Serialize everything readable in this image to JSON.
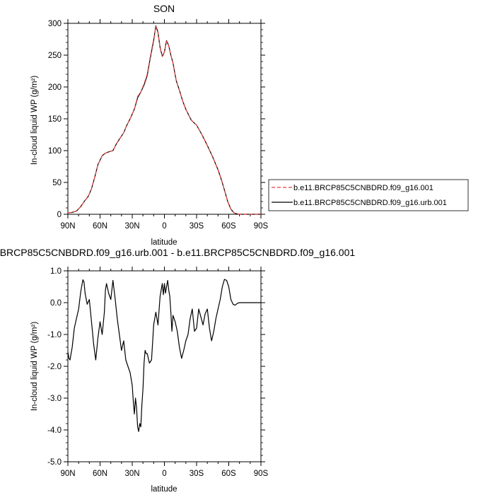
{
  "chart_data": [
    {
      "type": "line",
      "title": "SON",
      "xlabel": "latitude",
      "ylabel": "In-cloud liquid WP (g/m²)",
      "xlim": [
        90,
        -90
      ],
      "ylim": [
        0,
        300
      ],
      "x_ticks": [
        90,
        60,
        30,
        0,
        -30,
        -60,
        -90
      ],
      "x_tick_labels": [
        "90N",
        "60N",
        "30N",
        "0",
        "30S",
        "60S",
        "90S"
      ],
      "y_ticks": [
        0,
        50,
        100,
        150,
        200,
        250,
        300
      ],
      "y_tick_labels": [
        "0",
        "50",
        "100",
        "150",
        "200",
        "250",
        "300"
      ],
      "legend": "right",
      "series": [
        {
          "name": "b.e11.BRCP85C5CNBDRD.f09_g16.001",
          "color": "#e8413c",
          "dash": "dashed",
          "x": [
            90,
            86,
            82,
            78,
            74,
            71,
            68,
            65,
            62,
            60,
            58,
            55,
            52,
            48,
            45,
            42,
            38,
            35,
            32,
            28,
            25,
            22,
            19,
            16,
            14,
            12,
            10,
            8,
            6,
            4,
            2,
            0,
            -2,
            -4,
            -6,
            -8,
            -11,
            -14,
            -17,
            -20,
            -25,
            -30,
            -35,
            -40,
            -45,
            -50,
            -53,
            -56,
            -59,
            -62,
            -65,
            -68,
            -72,
            -80,
            -90
          ],
          "values": [
            2,
            3,
            5,
            12,
            22,
            28,
            40,
            58,
            78,
            85,
            92,
            96,
            98,
            100,
            110,
            118,
            128,
            140,
            150,
            165,
            185,
            192,
            205,
            220,
            240,
            258,
            275,
            295,
            285,
            262,
            248,
            255,
            272,
            265,
            250,
            238,
            210,
            195,
            178,
            165,
            148,
            140,
            125,
            108,
            90,
            70,
            55,
            38,
            20,
            8,
            2,
            0.5,
            0,
            0,
            0
          ]
        },
        {
          "name": "b.e11.BRCP85C5CNBDRD.f09_g16.urb.001",
          "color": "#000000",
          "dash": "solid",
          "x": [
            90,
            86,
            82,
            78,
            74,
            71,
            68,
            65,
            62,
            60,
            58,
            55,
            52,
            48,
            45,
            42,
            38,
            35,
            32,
            28,
            25,
            22,
            19,
            16,
            14,
            12,
            10,
            8,
            6,
            4,
            2,
            0,
            -2,
            -4,
            -6,
            -8,
            -11,
            -14,
            -17,
            -20,
            -25,
            -30,
            -35,
            -40,
            -45,
            -50,
            -53,
            -56,
            -59,
            -62,
            -65,
            -68,
            -72,
            -80,
            -90
          ],
          "values": [
            2,
            3,
            5,
            12,
            22,
            28,
            40,
            58,
            78,
            85,
            92,
            96,
            98,
            100,
            110,
            118,
            128,
            140,
            150,
            165,
            183,
            192,
            203,
            218,
            238,
            256,
            273,
            296,
            286,
            262,
            248,
            255,
            273,
            265,
            250,
            238,
            210,
            195,
            178,
            165,
            148,
            140,
            125,
            108,
            90,
            70,
            55,
            38,
            20,
            8,
            2,
            0.5,
            0,
            0,
            0
          ]
        }
      ]
    },
    {
      "type": "line",
      "title": "b.e11.BRCP85C5CNBDRD.f09_g16.urb.001 - b.e11.BRCP85C5CNBDRD.f09_g16.001",
      "xlabel": "latitude",
      "ylabel": "In-cloud liquid WP (g/m²)",
      "xlim": [
        90,
        -90
      ],
      "ylim": [
        -5,
        1
      ],
      "x_ticks": [
        90,
        60,
        30,
        0,
        -30,
        -60,
        -90
      ],
      "x_tick_labels": [
        "90N",
        "60N",
        "30N",
        "0",
        "30S",
        "60S",
        "90S"
      ],
      "y_ticks": [
        1,
        0,
        -1,
        -2,
        -3,
        -4,
        -5
      ],
      "y_tick_labels": [
        "1.0",
        "0.0",
        "-1.0",
        "-2.0",
        "-3.0",
        "-4.0",
        "-5.0"
      ],
      "series": [
        {
          "color": "#000000",
          "x": [
            90,
            89,
            88,
            86,
            84,
            82,
            80,
            78,
            76,
            75,
            74,
            72,
            70,
            68,
            66,
            64,
            62,
            60,
            58,
            56,
            55,
            54,
            52,
            50,
            48,
            46,
            44,
            42,
            40,
            38,
            36,
            34,
            32,
            30,
            29,
            28,
            27,
            26,
            25,
            24,
            23,
            22,
            21,
            20,
            19,
            18,
            17,
            16,
            14,
            12,
            10,
            8,
            6,
            4,
            2,
            1,
            0,
            -1,
            -2,
            -3,
            -4,
            -5,
            -6,
            -7,
            -8,
            -10,
            -12,
            -14,
            -16,
            -18,
            -20,
            -22,
            -24,
            -26,
            -28,
            -30,
            -32,
            -34,
            -36,
            -38,
            -40,
            -42,
            -44,
            -46,
            -48,
            -50,
            -52,
            -54,
            -56,
            -58,
            -60,
            -62,
            -64,
            -66,
            -68,
            -70,
            -75,
            -80,
            -85,
            -90
          ],
          "values": [
            -1.55,
            -1.75,
            -1.8,
            -1.4,
            -0.8,
            -0.5,
            -0.2,
            0.35,
            0.72,
            0.65,
            0.3,
            -0.05,
            0.1,
            -0.6,
            -1.3,
            -1.8,
            -1.1,
            -0.6,
            -1.0,
            -0.3,
            0.4,
            0.6,
            0.3,
            0.1,
            0.7,
            0.15,
            -0.5,
            -1.0,
            -1.5,
            -1.2,
            -1.8,
            -2.0,
            -2.2,
            -2.6,
            -3.1,
            -3.5,
            -3.0,
            -3.3,
            -3.9,
            -4.05,
            -3.8,
            -3.9,
            -3.2,
            -2.7,
            -1.9,
            -1.5,
            -1.6,
            -1.6,
            -1.9,
            -1.8,
            -0.7,
            -0.3,
            -0.7,
            0.2,
            0.6,
            0.25,
            0.6,
            0.3,
            0.5,
            0.7,
            0.4,
            0.2,
            -0.3,
            -0.9,
            -0.4,
            -0.6,
            -0.9,
            -1.4,
            -1.75,
            -1.5,
            -1.2,
            -1.0,
            -0.5,
            -0.2,
            -0.9,
            -0.8,
            -0.2,
            -0.45,
            -0.7,
            -0.35,
            -0.2,
            -0.8,
            -1.2,
            -0.9,
            -0.5,
            -0.2,
            0.1,
            0.5,
            0.73,
            0.7,
            0.5,
            0.1,
            -0.05,
            -0.08,
            -0.02,
            0.0,
            0.0,
            0.0,
            0.0,
            0.0
          ]
        }
      ]
    }
  ]
}
